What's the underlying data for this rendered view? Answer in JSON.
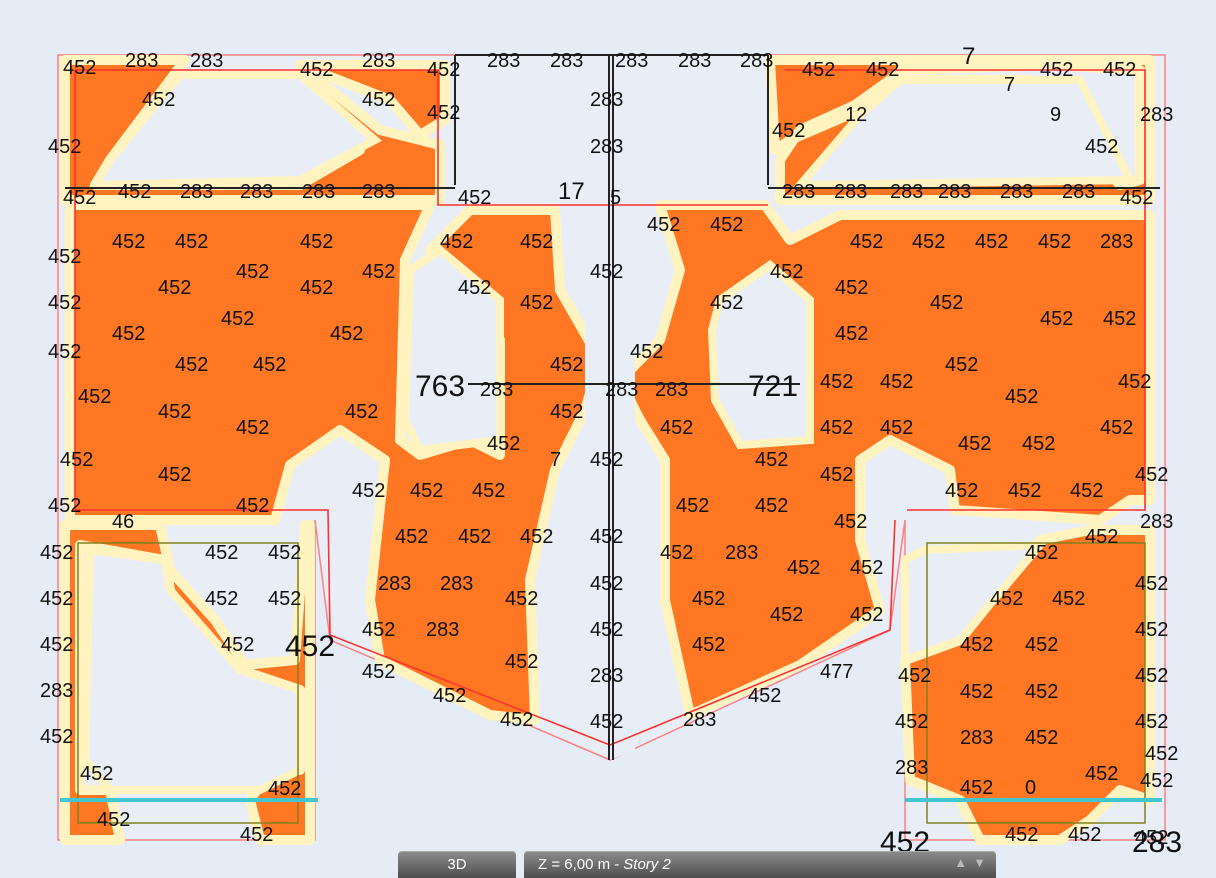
{
  "view": {
    "mode_button": "3D",
    "story_selector": {
      "level": "Z = 6,00 m -",
      "story": "Story 2"
    },
    "up_icon": "triangle-up-icon",
    "down_icon": "triangle-down-icon"
  },
  "colors": {
    "background": "#e6ecf5",
    "reinforcement_fill": "#ff7722",
    "halo": "#fff3c0",
    "boundary": "#ff4444",
    "beam": "#222222",
    "support_line": "#44c6d0",
    "opening": "#808020"
  },
  "labels": [
    "452",
    "283",
    "283",
    "452",
    "283",
    "452",
    "283",
    "283",
    "283",
    "283",
    "283",
    "452",
    "452",
    "7",
    "452",
    "452",
    "452",
    "452",
    "452",
    "283",
    "7",
    "452",
    "12",
    "9",
    "283",
    "452",
    "283",
    "452",
    "452",
    "452",
    "17",
    "5",
    "283",
    "283",
    "283",
    "283",
    "283",
    "283",
    "283",
    "283",
    "283",
    "283",
    "452",
    "452",
    "452",
    "452",
    "452",
    "452",
    "452",
    "452",
    "452",
    "452",
    "452",
    "452",
    "452",
    "283",
    "452",
    "452",
    "452",
    "452",
    "452",
    "452",
    "452",
    "452",
    "452",
    "452",
    "452",
    "452",
    "452",
    "452",
    "452",
    "452",
    "452",
    "452",
    "452",
    "452",
    "452",
    "452",
    "452",
    "452",
    "452",
    "452",
    "452",
    "452",
    "452",
    "763",
    "283",
    "283",
    "283",
    "721",
    "452",
    "452",
    "452",
    "452",
    "452",
    "452",
    "452",
    "452",
    "452",
    "452",
    "452",
    "452",
    "452",
    "452",
    "452",
    "452",
    "452",
    "452",
    "283",
    "452",
    "452",
    "452",
    "452",
    "452",
    "7",
    "452",
    "452",
    "452",
    "452",
    "452",
    "46",
    "452",
    "452",
    "452",
    "452",
    "452",
    "452",
    "452",
    "452",
    "452",
    "452",
    "283",
    "452",
    "452",
    "452",
    "283",
    "283",
    "452",
    "452",
    "452",
    "452",
    "452",
    "452",
    "452",
    "452",
    "452",
    "452",
    "452",
    "452",
    "283",
    "452",
    "452",
    "452",
    "452",
    "452",
    "452",
    "452",
    "452",
    "452",
    "283",
    "452",
    "477",
    "452",
    "452",
    "283",
    "452",
    "452",
    "452",
    "452",
    "452",
    "452",
    "283",
    "452",
    "452",
    "452",
    "283",
    "452",
    "452",
    "452",
    "283",
    "452",
    "452",
    "452",
    "452",
    "0",
    "452",
    "452",
    "452",
    "452",
    "452",
    "283",
    "452",
    "452",
    "452",
    "452",
    "452",
    "452",
    "452"
  ]
}
